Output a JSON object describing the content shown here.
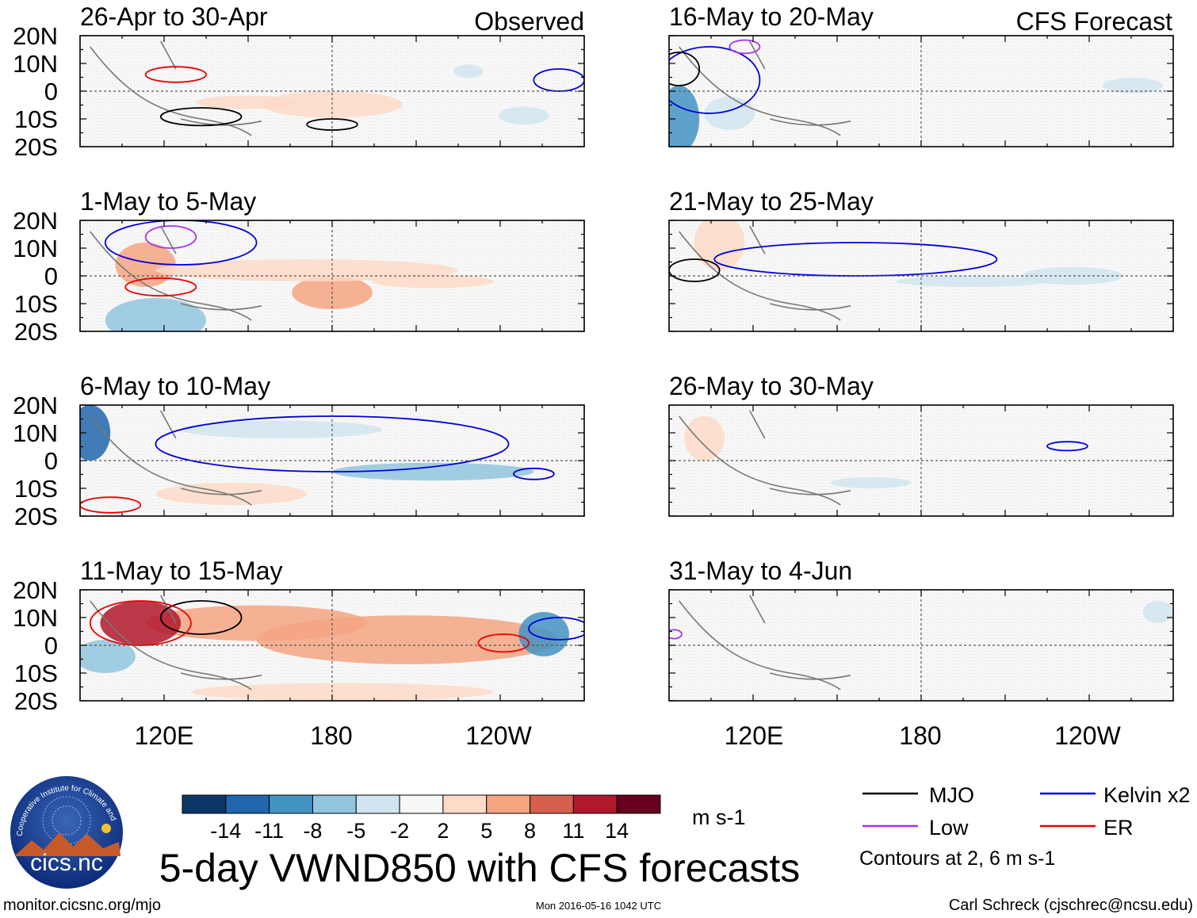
{
  "figure": {
    "title": "5-day VWND850 with CFS forecasts",
    "footer_left": "monitor.cicsnc.org/mjo",
    "footer_center": "Mon 2016-05-16 1042 UTC",
    "footer_right": "Carl Schreck (cjschrec@ncsu.edu)",
    "logo": {
      "arc_text": "Cooperative Institute for Climate and Satellites",
      "name": "cics.nc"
    }
  },
  "column_labels": {
    "left": "Observed",
    "right": "CFS Forecast"
  },
  "chart_data": {
    "type": "heatmap",
    "variable": "VWND850",
    "units": "m s-1",
    "x_ticks": [
      "120E",
      "180",
      "120W"
    ],
    "y_ticks": [
      "20N",
      "10N",
      "0",
      "10S",
      "20S"
    ],
    "panels": [
      {
        "title": "26-Apr to 30-Apr",
        "kind": "observed"
      },
      {
        "title": "1-May to 5-May",
        "kind": "observed"
      },
      {
        "title": "6-May to 10-May",
        "kind": "observed"
      },
      {
        "title": "11-May to 15-May",
        "kind": "observed"
      },
      {
        "title": "16-May to 20-May",
        "kind": "forecast"
      },
      {
        "title": "21-May to 25-May",
        "kind": "forecast"
      },
      {
        "title": "26-May to 30-May",
        "kind": "forecast"
      },
      {
        "title": "31-May to 4-Jun",
        "kind": "forecast"
      }
    ],
    "colorbar": {
      "ticks": [
        "-14",
        "-11",
        "-8",
        "-5",
        "-2",
        "2",
        "5",
        "8",
        "11",
        "14"
      ],
      "colors": [
        "#0d3766",
        "#2166ac",
        "#4393c3",
        "#92c5de",
        "#d1e5f0",
        "#f7f7f7",
        "#fddbc7",
        "#f4a582",
        "#d6604d",
        "#b2182b",
        "#67001f"
      ]
    },
    "legend": {
      "items": [
        {
          "label": "MJO",
          "color": "#000000"
        },
        {
          "label": "Kelvin x2",
          "color": "#0000dd"
        },
        {
          "label": "Low",
          "color": "#9933ee"
        },
        {
          "label": "ER",
          "color": "#ee0000"
        }
      ],
      "note": "Contours at 2, 6 m s-1"
    }
  }
}
